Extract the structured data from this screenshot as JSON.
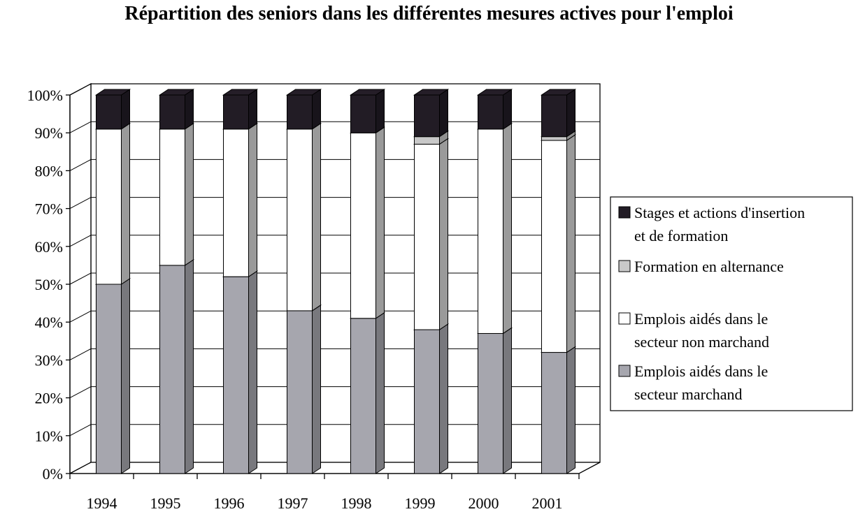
{
  "chart_data": {
    "type": "bar",
    "stacked": true,
    "percent_stacked": true,
    "three_d": true,
    "title": "Répartition des seniors dans les différentes mesures actives pour l'emploi",
    "categories": [
      "1994",
      "1995",
      "1996",
      "1997",
      "1998",
      "1999",
      "2000",
      "2001"
    ],
    "y_ticks": [
      "0%",
      "10%",
      "20%",
      "30%",
      "40%",
      "50%",
      "60%",
      "70%",
      "80%",
      "90%",
      "100%"
    ],
    "ylim": [
      0,
      100
    ],
    "grid": true,
    "legend_position": "right",
    "series": [
      {
        "name": "Emplois aidés dans le secteur marchand",
        "legend_lines": [
          "Emplois aidés dans le",
          "secteur marchand"
        ],
        "color": "#a6a6ae",
        "values": [
          50,
          55,
          52,
          43,
          41,
          38,
          37,
          32
        ]
      },
      {
        "name": "Emplois aidés dans le secteur non marchand",
        "legend_lines": [
          "Emplois aidés dans le",
          "secteur non marchand"
        ],
        "color": "#ffffff",
        "values": [
          41,
          36,
          39,
          48,
          49,
          49,
          54,
          56
        ]
      },
      {
        "name": "Formation en alternance",
        "legend_lines": [
          "Formation en alternance"
        ],
        "color": "#c8c8c8",
        "values": [
          0,
          0,
          0,
          0,
          0,
          2,
          0,
          1
        ]
      },
      {
        "name": "Stages et actions d'insertion et de formation",
        "legend_lines": [
          "Stages et actions d'insertion",
          "et de formation"
        ],
        "color": "#221c25",
        "values": [
          9,
          9,
          9,
          9,
          10,
          11,
          9,
          11
        ]
      }
    ]
  }
}
